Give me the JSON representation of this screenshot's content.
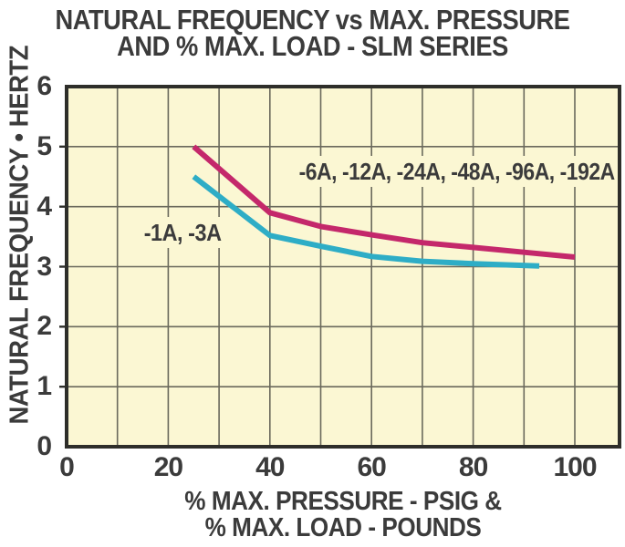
{
  "title": {
    "line1": "NATURAL FREQUENCY vs MAX. PRESSURE",
    "line2": "AND % MAX. LOAD - SLM SERIES"
  },
  "y_axis": {
    "label": "NATURAL FREQUENCY • HERTZ"
  },
  "x_axis": {
    "title_line1": "% MAX. PRESSURE - PSIG &",
    "title_line2": "% MAX. LOAD - POUNDS"
  },
  "colors": {
    "plot_background": "#fbf7d3",
    "grid": "#6a695c",
    "border": "#2e2e2a",
    "text": "#3b3b3b",
    "series_pink": "#c4286b",
    "series_cyan": "#2eadc6"
  },
  "chart_data": {
    "type": "line",
    "title": "NATURAL FREQUENCY vs MAX. PRESSURE AND % MAX. LOAD - SLM SERIES",
    "xlabel": "% MAX. PRESSURE - PSIG & % MAX. LOAD - POUNDS",
    "ylabel": "NATURAL FREQUENCY • HERTZ",
    "xlim": [
      0,
      108.8
    ],
    "ylim": [
      0,
      6
    ],
    "x_ticks": [
      0,
      20,
      40,
      60,
      80,
      100
    ],
    "y_ticks": [
      0,
      1,
      2,
      3,
      4,
      5,
      6
    ],
    "grid": {
      "x_interval": 10,
      "x_max_line": 100,
      "y_interval": 1,
      "on": true
    },
    "legend_position": "inline-annotations",
    "series": [
      {
        "name": "-6A, -12A, -24A, -48A, -96A, -192A",
        "color": "#c4286b",
        "x": [
          25,
          40,
          50,
          60,
          70,
          80,
          90,
          100
        ],
        "y": [
          5.0,
          3.9,
          3.67,
          3.53,
          3.4,
          3.32,
          3.24,
          3.16
        ]
      },
      {
        "name": "-1A, -3A",
        "color": "#2eadc6",
        "x": [
          25,
          40,
          50,
          60,
          70,
          80,
          93
        ],
        "y": [
          4.5,
          3.52,
          3.34,
          3.17,
          3.09,
          3.05,
          3.01
        ]
      }
    ]
  }
}
